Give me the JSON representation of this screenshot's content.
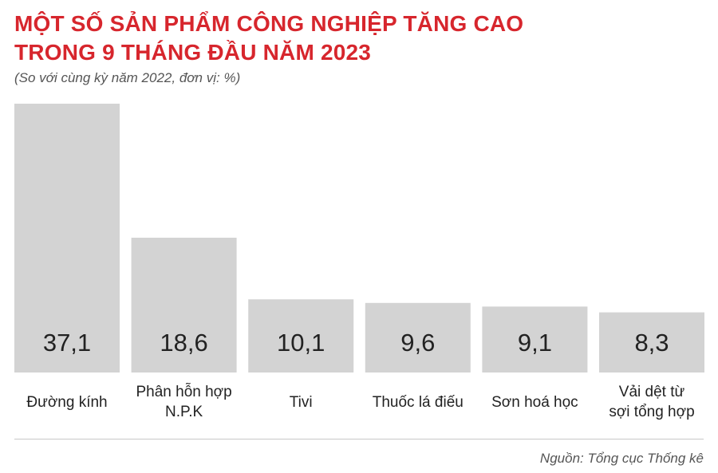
{
  "title_line1": "MỘT SỐ SẢN PHẨM CÔNG NGHIỆP TĂNG CAO",
  "title_line2": "TRONG 9 THÁNG ĐẦU NĂM 2023",
  "subtitle": "(So với cùng kỳ năm 2022, đơn vị: %)",
  "source": "Nguồn: Tổng cục Thống kê",
  "colors": {
    "bar": "#d3d3d3",
    "title": "#d7262d",
    "value_text": "#222222",
    "label_text": "#222222"
  },
  "chart_data": {
    "type": "bar",
    "categories": [
      [
        "Đường kính"
      ],
      [
        "Phân hỗn hợp",
        "N.P.K"
      ],
      [
        "Tivi"
      ],
      [
        "Thuốc lá điếu"
      ],
      [
        "Sơn hoá học"
      ],
      [
        "Vải dệt từ",
        "sợi tổng hợp"
      ]
    ],
    "values": [
      37.1,
      18.6,
      10.1,
      9.6,
      9.1,
      8.3
    ],
    "value_labels": [
      "37,1",
      "18,6",
      "10,1",
      "9,6",
      "9,1",
      "8,3"
    ],
    "ylim": [
      0,
      37.1
    ],
    "grid": false,
    "legend": "none"
  }
}
